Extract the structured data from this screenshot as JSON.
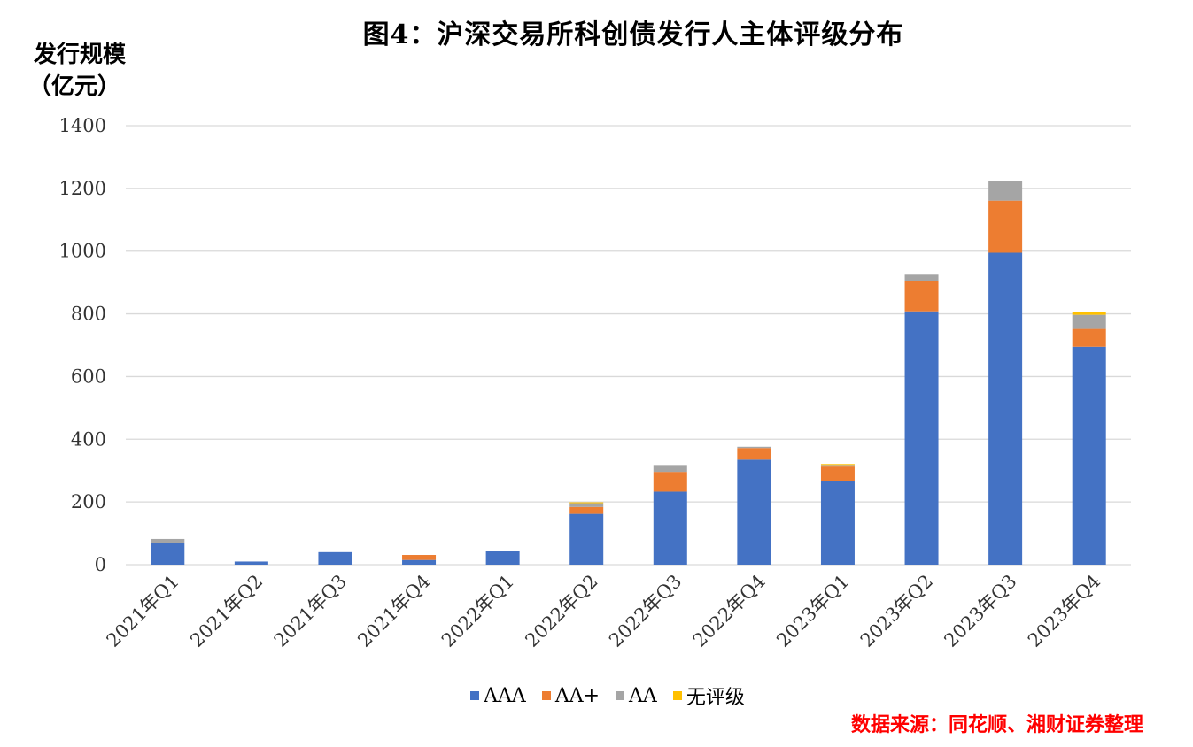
{
  "colors": {
    "AAA": "#4472C4",
    "AA+": "#ED7D31",
    "AA": "#A5A5A5",
    "none": "#FFC000",
    "source": "#FF0000",
    "grid": "#D9D9D9"
  },
  "chart_data": {
    "type": "bar",
    "stacked": true,
    "title": "图4：沪深交易所科创债发行人主体评级分布",
    "ylabel_line1": "发行规模",
    "ylabel_line2": "（亿元）",
    "xlabel": "",
    "ylim": [
      0,
      1400
    ],
    "yticks": [
      "0",
      "200",
      "400",
      "600",
      "800",
      "1000",
      "1200",
      "1400"
    ],
    "grid": true,
    "legend_position": "bottom",
    "categories": [
      "2021年Q1",
      "2021年Q2",
      "2021年Q3",
      "2021年Q4",
      "2022年Q1",
      "2022年Q2",
      "2022年Q3",
      "2022年Q4",
      "2023年Q1",
      "2023年Q2",
      "2023年Q3",
      "2023年Q4"
    ],
    "series": [
      {
        "name": "AAA",
        "values": [
          68,
          10,
          40,
          15,
          43,
          162,
          233,
          335,
          268,
          808,
          995,
          695
        ]
      },
      {
        "name": "AA+",
        "values": [
          0,
          0,
          0,
          16,
          0,
          22,
          63,
          37,
          45,
          97,
          166,
          57
        ]
      },
      {
        "name": "AA",
        "values": [
          14,
          0,
          0,
          0,
          0,
          12,
          22,
          4,
          5,
          20,
          62,
          45
        ]
      },
      {
        "name": "无评级",
        "values": [
          0,
          0,
          0,
          0,
          0,
          3,
          0,
          0,
          3,
          0,
          0,
          8
        ]
      }
    ]
  },
  "source": "数据来源：同花顺、湘财证券整理"
}
